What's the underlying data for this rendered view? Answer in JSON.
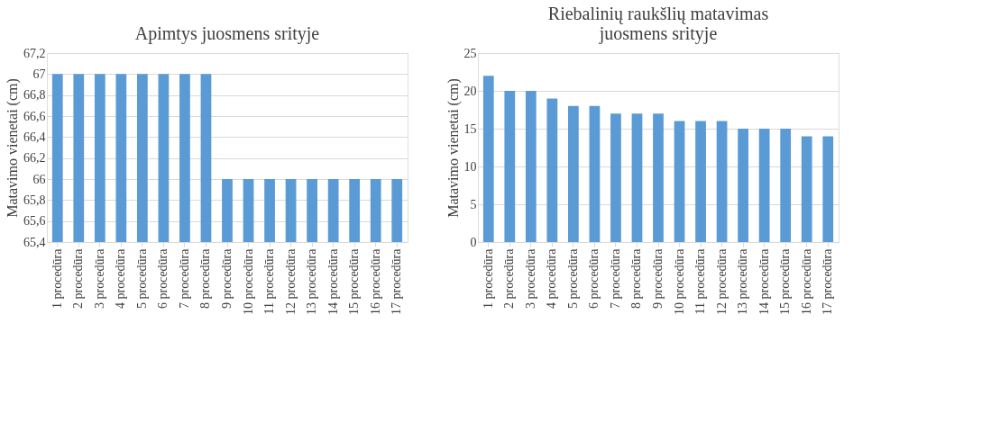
{
  "chart_data": [
    {
      "type": "bar",
      "title": "Apimtys  juosmens srityje",
      "ylabel": "Matavimo vienetai (cm)",
      "categories": [
        "1 procedūra",
        "2 procedūra",
        "3 procedūra",
        "4 procedūra",
        "5 procedūra",
        "6 procedūra",
        "7 procedūra",
        "8 procedūra",
        "9 procedūra",
        "10 procedūra",
        "11 procedūra",
        "12 procedūra",
        "13 procedūra",
        "14 procedūra",
        "15 procedūra",
        "16 procedūra",
        "17 procedūra"
      ],
      "values": [
        67,
        67,
        67,
        67,
        67,
        67,
        67,
        67,
        66,
        66,
        66,
        66,
        66,
        66,
        66,
        66,
        66
      ],
      "color": "#5b9bd5",
      "ylim": [
        65.4,
        67.2
      ],
      "yticks": [
        {
          "value": 65.4,
          "label": "65,4"
        },
        {
          "value": 65.6,
          "label": "65,6"
        },
        {
          "value": 65.8,
          "label": "65,8"
        },
        66,
        {
          "value": 66.2,
          "label": "66,2"
        },
        {
          "value": 66.4,
          "label": "66,4"
        },
        {
          "value": 66.6,
          "label": "66,6"
        },
        {
          "value": 66.8,
          "label": "66,8"
        },
        67,
        {
          "value": 67.2,
          "label": "67,2"
        }
      ],
      "grid": "y"
    },
    {
      "type": "bar",
      "title": "Riebalinių raukšlių matavimas\njuosmens srityje",
      "ylabel": "Matavimo vienetai (cm)",
      "categories": [
        "1 procedūra",
        "2 procedūra",
        "3 procedūra",
        "4 procedūra",
        "5 procedūra",
        "6 procedūra",
        "7 procedūra",
        "8 procedūra",
        "9 procedūra",
        "10 procedūra",
        "11 procedūra",
        "12 procedūra",
        "13 procedūra",
        "14 procedūra",
        "15 procedūra",
        "16 procedūra",
        "17 procedūra"
      ],
      "values": [
        22,
        20,
        20,
        19,
        18,
        18,
        17,
        17,
        17,
        16,
        16,
        16,
        15,
        15,
        15,
        14,
        14
      ],
      "color": "#5b9bd5",
      "ylim": [
        0,
        25
      ],
      "yticks": [
        0,
        5,
        10,
        15,
        20,
        25
      ],
      "grid": "y"
    }
  ]
}
